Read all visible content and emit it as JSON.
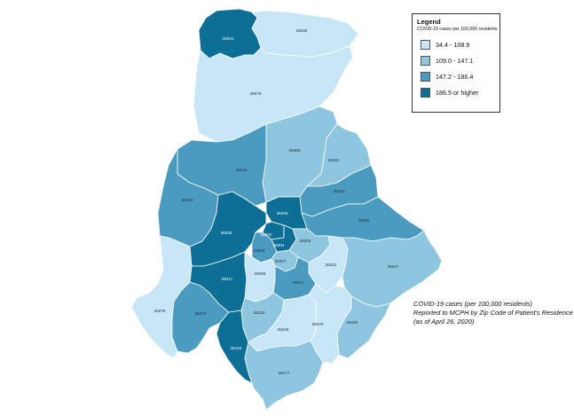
{
  "legend": {
    "title": "Legend",
    "subtitle": "COVID-19 cases per 100,000 residents",
    "ranges": [
      {
        "label": "34.4 - 108.9",
        "color": "#c7e6f6"
      },
      {
        "label": "109.0 - 147.1",
        "color": "#8ec6e0"
      },
      {
        "label": "147.2 - 186.4",
        "color": "#4a9bbf"
      },
      {
        "label": "186.5 or higher",
        "color": "#0e6f96"
      }
    ]
  },
  "caption": {
    "line1": "COVID-19 cases (per 100,000 residents)",
    "line2": "Reported to MCPH by Zip Code of Patient's Residence",
    "line3": "(as of April 26, 2020)"
  },
  "zips": [
    {
      "code": "28031",
      "bin": 3
    },
    {
      "code": "28036",
      "bin": 0
    },
    {
      "code": "28078",
      "bin": 0
    },
    {
      "code": "28269",
      "bin": 1
    },
    {
      "code": "28262",
      "bin": 1
    },
    {
      "code": "28216",
      "bin": 2
    },
    {
      "code": "28214",
      "bin": 2
    },
    {
      "code": "28213",
      "bin": 2
    },
    {
      "code": "28215",
      "bin": 2
    },
    {
      "code": "28206",
      "bin": 3
    },
    {
      "code": "28208",
      "bin": 3
    },
    {
      "code": "28202",
      "bin": 3
    },
    {
      "code": "28204",
      "bin": 3
    },
    {
      "code": "28205",
      "bin": 1
    },
    {
      "code": "28203",
      "bin": 2
    },
    {
      "code": "28207",
      "bin": 1
    },
    {
      "code": "28212",
      "bin": 0
    },
    {
      "code": "28227",
      "bin": 1
    },
    {
      "code": "28217",
      "bin": 3
    },
    {
      "code": "28209",
      "bin": 0
    },
    {
      "code": "28211",
      "bin": 2
    },
    {
      "code": "28278",
      "bin": 0
    },
    {
      "code": "28273",
      "bin": 2
    },
    {
      "code": "28210",
      "bin": 1
    },
    {
      "code": "28226",
      "bin": 0
    },
    {
      "code": "28270",
      "bin": 0
    },
    {
      "code": "28105",
      "bin": 1
    },
    {
      "code": "28134",
      "bin": 3
    },
    {
      "code": "28277",
      "bin": 1
    }
  ]
}
